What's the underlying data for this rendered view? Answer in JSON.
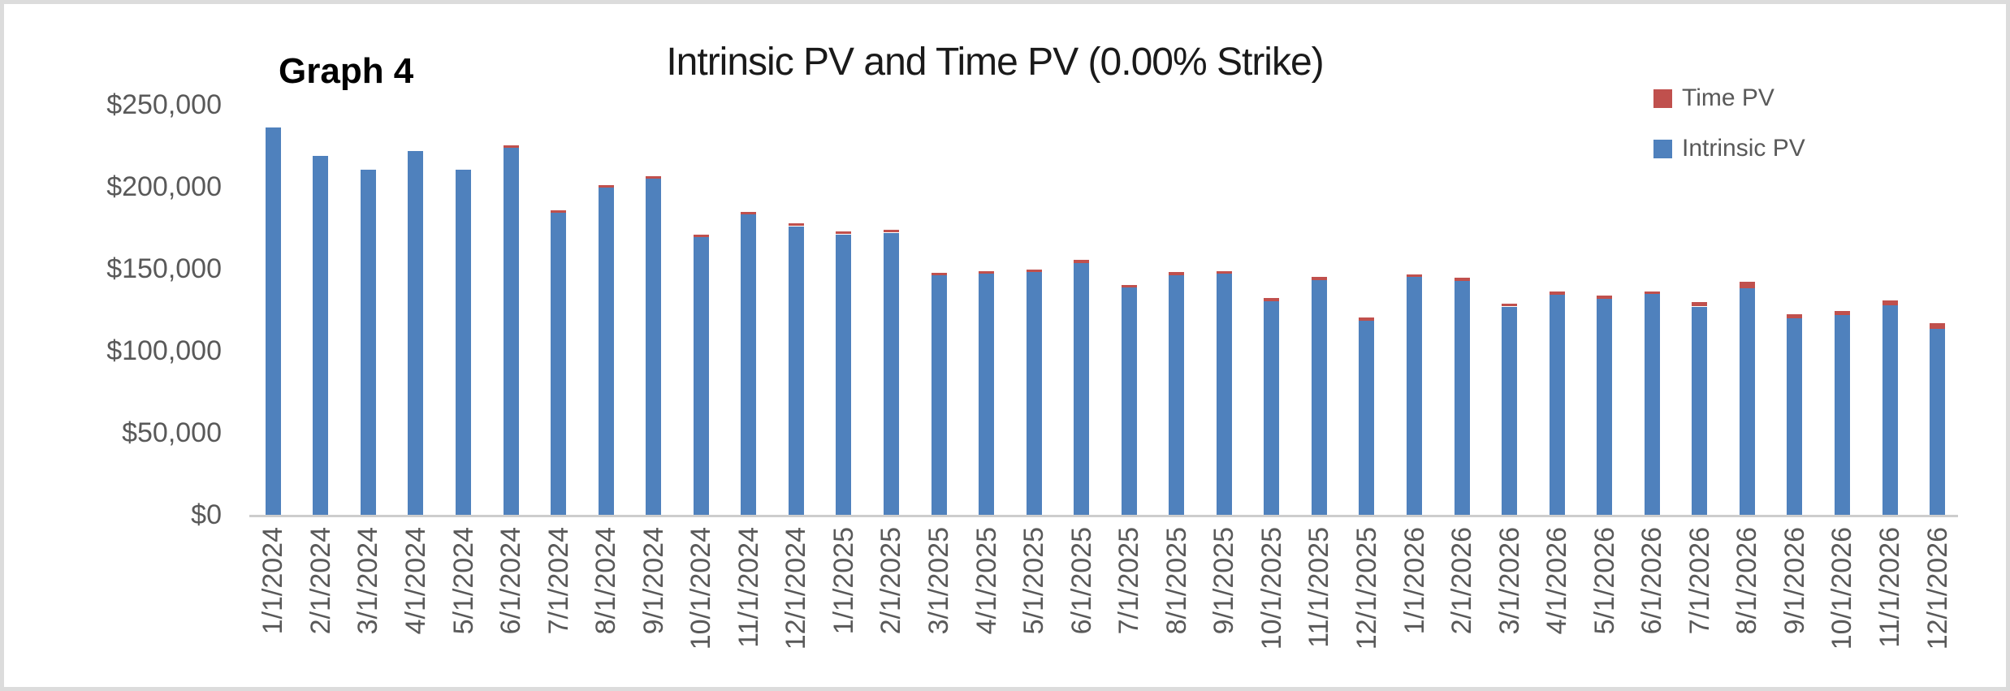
{
  "annotation": {
    "graph_label": "Graph 4"
  },
  "chart_data": {
    "type": "bar",
    "stacked": true,
    "title": "Intrinsic PV and Time PV (0.00% Strike)",
    "grid": false,
    "categories": [
      "1/1/2024",
      "2/1/2024",
      "3/1/2024",
      "4/1/2024",
      "5/1/2024",
      "6/1/2024",
      "7/1/2024",
      "8/1/2024",
      "9/1/2024",
      "10/1/2024",
      "11/1/2024",
      "12/1/2024",
      "1/1/2025",
      "2/1/2025",
      "3/1/2025",
      "4/1/2025",
      "5/1/2025",
      "6/1/2025",
      "7/1/2025",
      "8/1/2025",
      "9/1/2025",
      "10/1/2025",
      "11/1/2025",
      "12/1/2025",
      "1/1/2026",
      "2/1/2026",
      "3/1/2026",
      "4/1/2026",
      "5/1/2026",
      "6/1/2026",
      "7/1/2026",
      "8/1/2026",
      "9/1/2026",
      "10/1/2026",
      "11/1/2026",
      "12/1/2026"
    ],
    "series": [
      {
        "name": "Intrinsic PV",
        "color": "#4F81BD",
        "values": [
          236000,
          219000,
          210500,
          222000,
          210500,
          224000,
          184000,
          199500,
          205000,
          169500,
          183000,
          176000,
          171000,
          172000,
          146000,
          147000,
          148000,
          153500,
          138500,
          146000,
          147000,
          130000,
          143000,
          118500,
          145000,
          142500,
          127000,
          134000,
          131500,
          134500,
          127000,
          138000,
          120000,
          122000,
          127500,
          113500
        ]
      },
      {
        "name": "Time PV",
        "color": "#C0504D",
        "values": [
          0,
          0,
          0,
          0,
          0,
          1500,
          1500,
          1500,
          1500,
          1500,
          1500,
          1800,
          1700,
          1700,
          1500,
          1600,
          1600,
          1800,
          1700,
          1800,
          1600,
          2000,
          2300,
          1600,
          1700,
          2000,
          1800,
          2300,
          2100,
          1800,
          2600,
          3900,
          2500,
          2500,
          3400,
          3500
        ]
      }
    ],
    "legend": {
      "position": "top-right",
      "entries": [
        "Time PV",
        "Intrinsic PV"
      ]
    },
    "y_axis": {
      "min": 0,
      "max": 250000,
      "step": 50000,
      "tick_labels": [
        "$250,000",
        "$200,000",
        "$150,000",
        "$100,000",
        "$50,000",
        "$0"
      ]
    },
    "x_axis": {
      "label_rotation": -90
    }
  }
}
